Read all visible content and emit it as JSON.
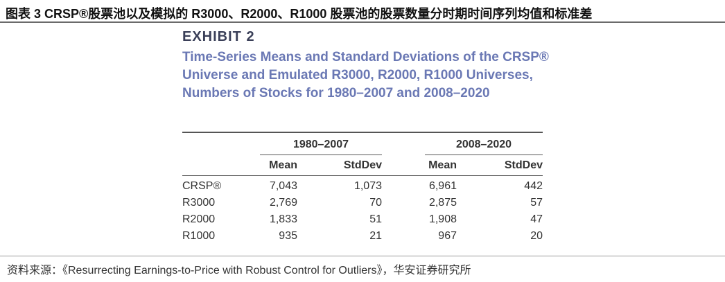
{
  "caption": "图表 3 CRSP®股票池以及模拟的 R3000、R2000、R1000 股票池的股票数量分时期时间序列均值和标准差",
  "exhibit": {
    "label": "EXHIBIT 2",
    "title": "Time-Series Means and Standard Deviations of the CRSP® Universe and Emulated R3000, R2000, R1000 Universes, Numbers of Stocks for 1980–2007 and 2008–2020"
  },
  "table": {
    "groups": [
      "1980–2007",
      "2008–2020"
    ],
    "columns": [
      "Mean",
      "StdDev",
      "Mean",
      "StdDev"
    ],
    "rows": [
      {
        "label": "CRSP®",
        "values": [
          "7,043",
          "1,073",
          "6,961",
          "442"
        ]
      },
      {
        "label": "R3000",
        "values": [
          "2,769",
          "70",
          "2,875",
          "57"
        ]
      },
      {
        "label": "R2000",
        "values": [
          "1,833",
          "51",
          "1,908",
          "47"
        ]
      },
      {
        "label": "R1000",
        "values": [
          "935",
          "21",
          "967",
          "20"
        ]
      }
    ]
  },
  "source": "资料来源：《Resurrecting Earnings-to-Price with Robust Control for Outliers》，华安证券研究所"
}
